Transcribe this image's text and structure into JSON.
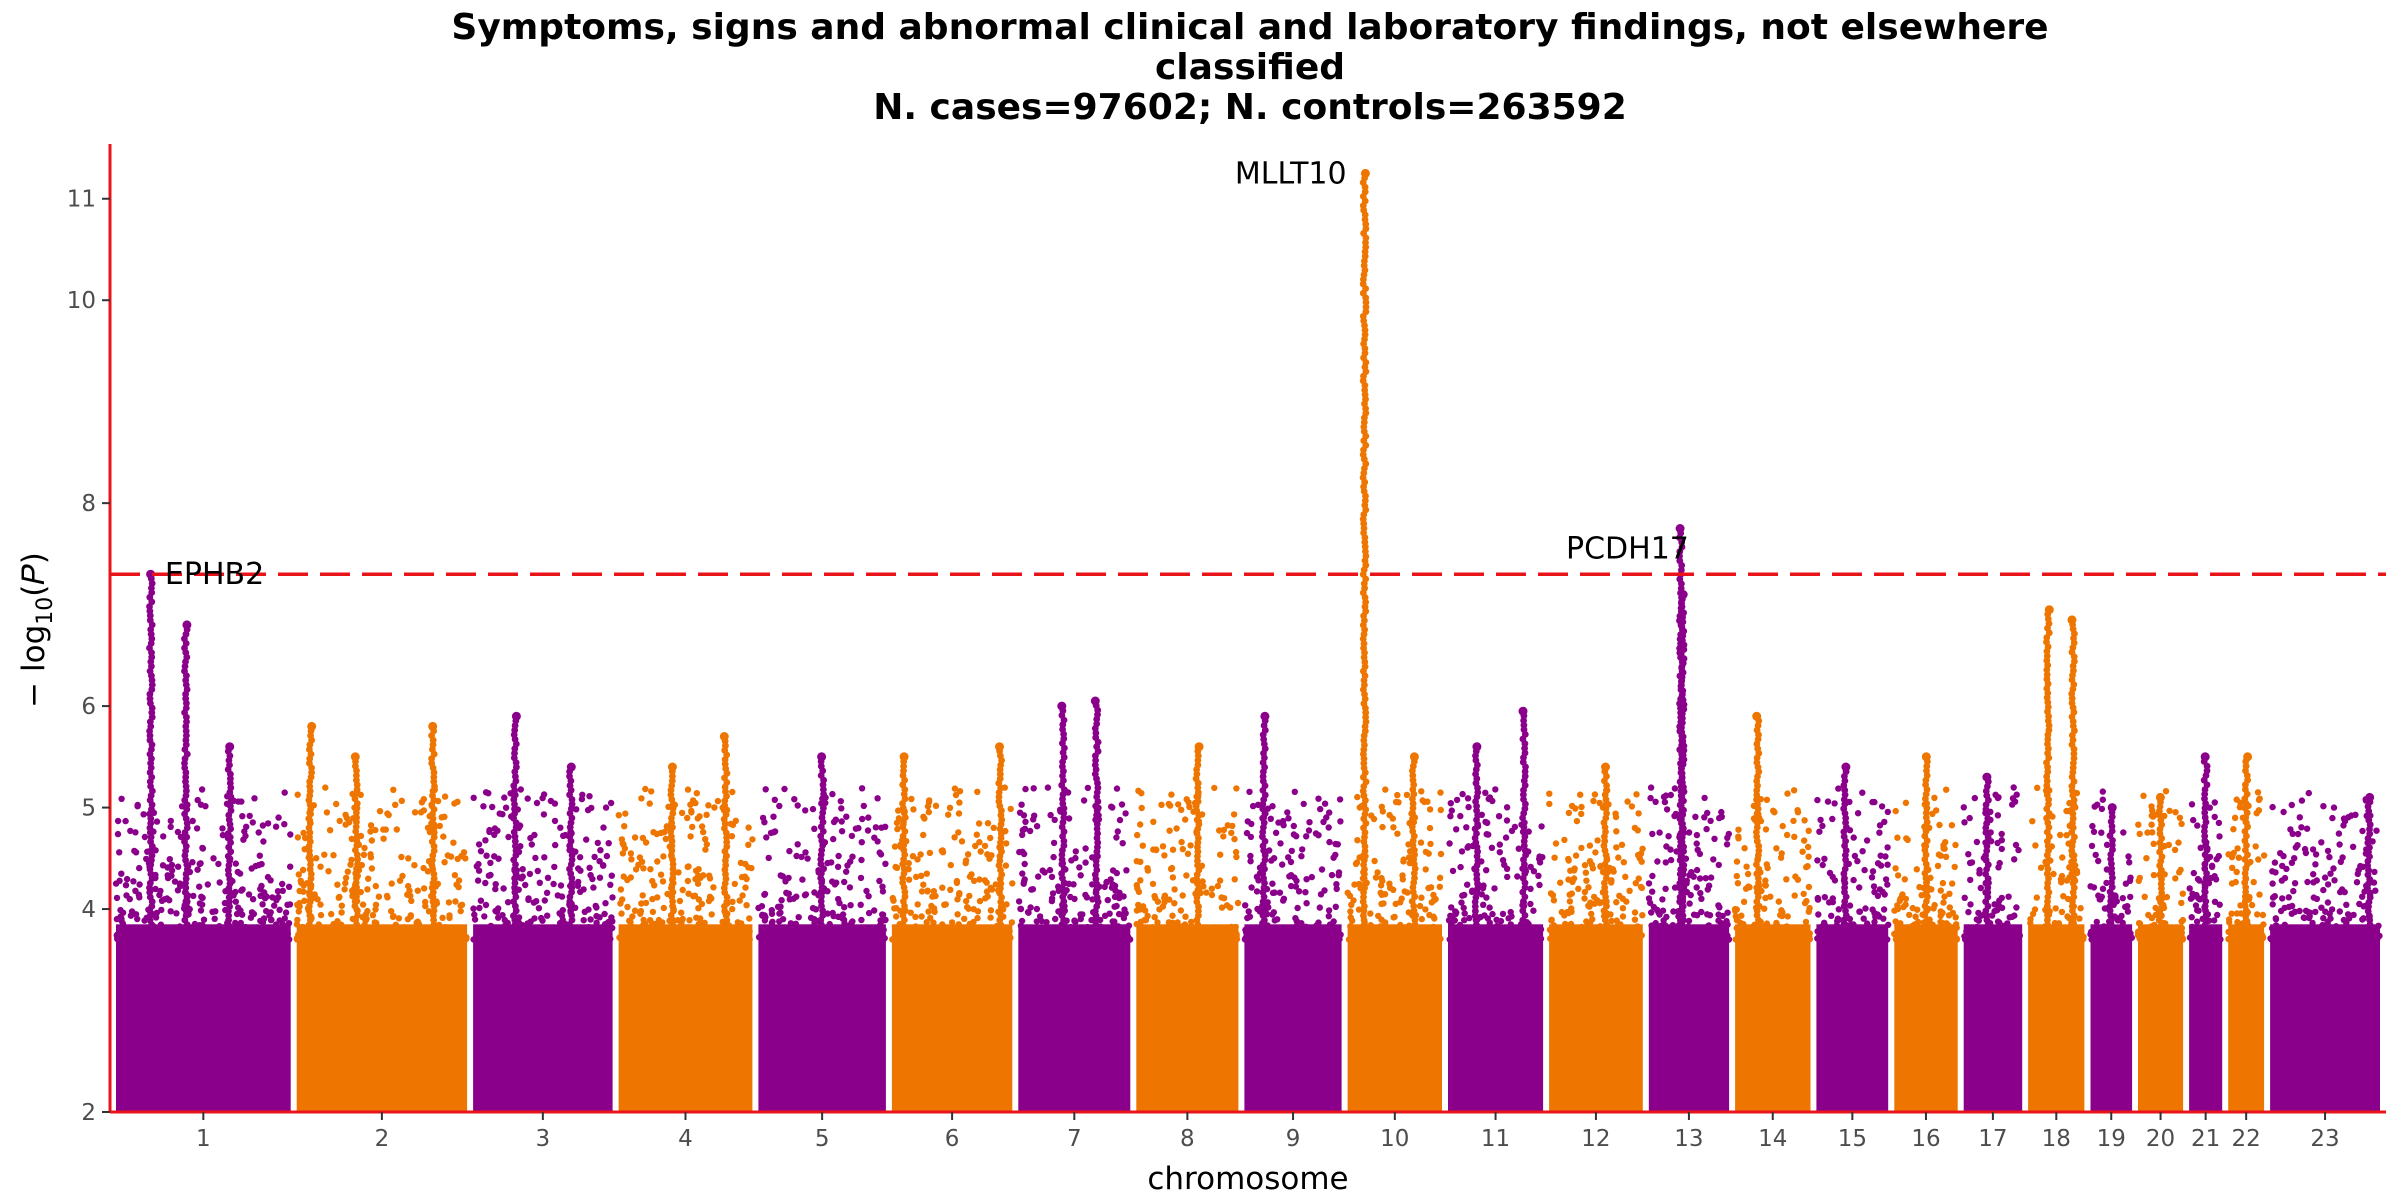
{
  "chart_data": {
    "type": "scatter",
    "title_lines": [
      "Symptoms, signs and abnormal clinical and laboratory findings, not elsewhere",
      "classified",
      "N. cases=97602; N. controls=263592"
    ],
    "xlabel": "chromosome",
    "ylabel_prefix": "− log",
    "ylabel_sub": "10",
    "ylabel_suffix": "(P)",
    "ylim": [
      2,
      11.5
    ],
    "yticks": [
      2,
      4,
      5,
      6,
      8,
      10,
      11
    ],
    "grid": false,
    "threshold": 7.3,
    "colors": {
      "odd": "#8b008b",
      "even": "#ee7600",
      "threshold": "#e8141a",
      "axis": "#e8141a"
    },
    "chromosomes": [
      {
        "label": "1",
        "len": 248,
        "peaks": [
          [
            0.2,
            7.3
          ],
          [
            0.65,
            5.6
          ],
          [
            0.4,
            6.8
          ]
        ]
      },
      {
        "label": "2",
        "len": 242,
        "peaks": [
          [
            0.08,
            5.8
          ],
          [
            0.35,
            5.5
          ],
          [
            0.8,
            5.8
          ]
        ]
      },
      {
        "label": "3",
        "len": 198,
        "peaks": [
          [
            0.3,
            5.9
          ],
          [
            0.7,
            5.4
          ]
        ]
      },
      {
        "label": "4",
        "len": 190,
        "peaks": [
          [
            0.4,
            5.4
          ],
          [
            0.8,
            5.7
          ]
        ]
      },
      {
        "label": "5",
        "len": 181,
        "peaks": [
          [
            0.5,
            5.5
          ]
        ]
      },
      {
        "label": "6",
        "len": 171,
        "peaks": [
          [
            0.1,
            5.5
          ],
          [
            0.9,
            5.6
          ]
        ]
      },
      {
        "label": "7",
        "len": 159,
        "peaks": [
          [
            0.4,
            6.0
          ],
          [
            0.7,
            6.05
          ]
        ]
      },
      {
        "label": "8",
        "len": 145,
        "peaks": [
          [
            0.6,
            5.6
          ]
        ]
      },
      {
        "label": "9",
        "len": 138,
        "peaks": [
          [
            0.2,
            5.9
          ]
        ]
      },
      {
        "label": "10",
        "len": 134,
        "peaks": [
          [
            0.18,
            11.25
          ],
          [
            0.7,
            5.5
          ]
        ]
      },
      {
        "label": "11",
        "len": 135,
        "peaks": [
          [
            0.3,
            5.6
          ],
          [
            0.8,
            5.95
          ]
        ]
      },
      {
        "label": "12",
        "len": 133,
        "peaks": [
          [
            0.6,
            5.4
          ]
        ]
      },
      {
        "label": "13",
        "len": 114,
        "peaks": [
          [
            0.4,
            7.75
          ],
          [
            0.42,
            7.1
          ]
        ]
      },
      {
        "label": "14",
        "len": 107,
        "peaks": [
          [
            0.3,
            5.9
          ]
        ]
      },
      {
        "label": "15",
        "len": 102,
        "peaks": [
          [
            0.4,
            5.4
          ]
        ]
      },
      {
        "label": "16",
        "len": 90,
        "peaks": [
          [
            0.5,
            5.5
          ]
        ]
      },
      {
        "label": "17",
        "len": 83,
        "peaks": [
          [
            0.4,
            5.3
          ]
        ]
      },
      {
        "label": "18",
        "len": 80,
        "peaks": [
          [
            0.35,
            6.95
          ],
          [
            0.8,
            6.85
          ]
        ]
      },
      {
        "label": "19",
        "len": 59,
        "peaks": [
          [
            0.5,
            5.0
          ]
        ]
      },
      {
        "label": "20",
        "len": 64,
        "peaks": [
          [
            0.5,
            5.1
          ]
        ]
      },
      {
        "label": "21",
        "len": 47,
        "peaks": [
          [
            0.5,
            5.5
          ]
        ]
      },
      {
        "label": "22",
        "len": 51,
        "peaks": [
          [
            0.5,
            5.5
          ]
        ]
      },
      {
        "label": "23",
        "len": 156,
        "peaks": [
          [
            0.9,
            5.1
          ]
        ]
      }
    ],
    "annotations": [
      {
        "label": "EPHB2",
        "chrom": "1",
        "pos": 0.2,
        "y": 7.3,
        "side": "right"
      },
      {
        "label": "MLLT10",
        "chrom": "10",
        "pos": 0.18,
        "y": 11.25,
        "side": "left"
      },
      {
        "label": "PCDH17",
        "chrom": "13",
        "pos": 0.4,
        "y": 7.75,
        "side": "above-left"
      }
    ]
  }
}
